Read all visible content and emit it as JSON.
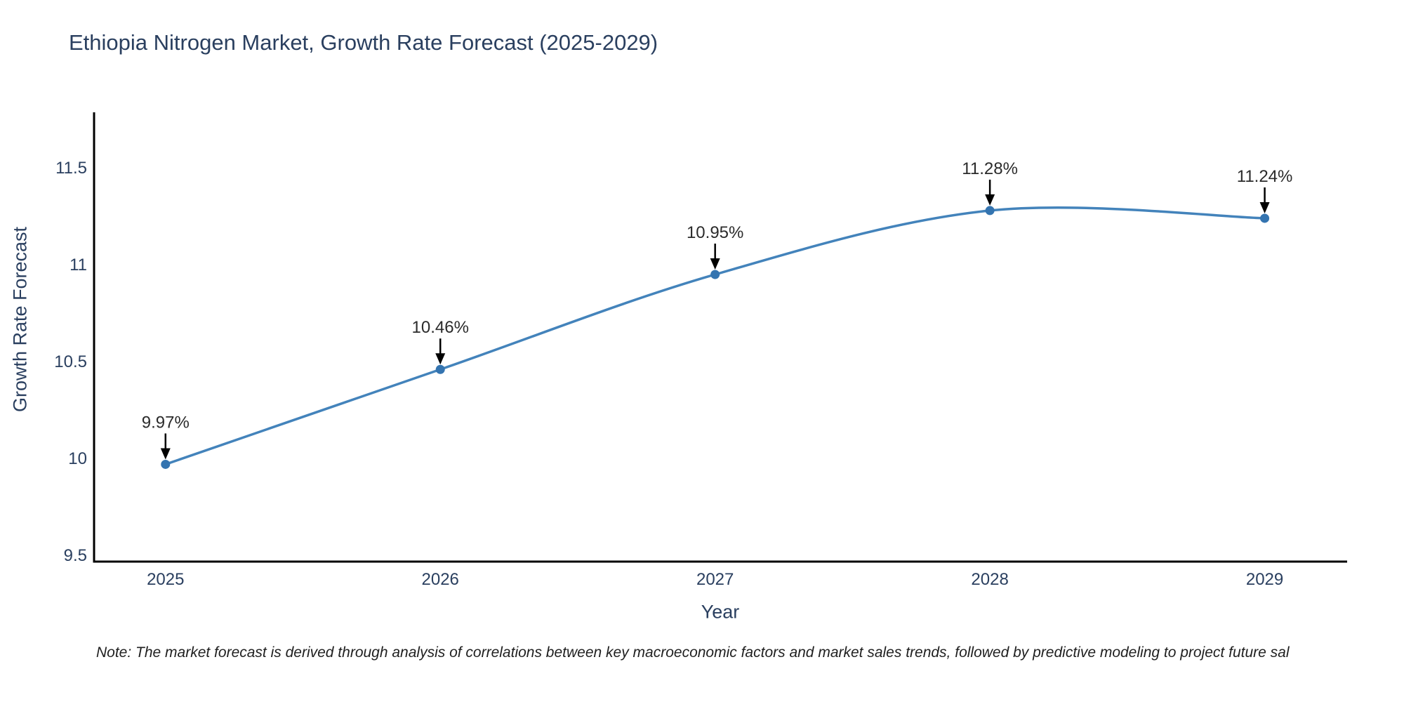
{
  "page": {
    "background": "#ffffff"
  },
  "chart_data": {
    "type": "line",
    "title": "Ethiopia Nitrogen Market, Growth Rate Forecast (2025-2029)",
    "xlabel": "Year",
    "ylabel": "Growth Rate Forecast",
    "categories": [
      "2025",
      "2026",
      "2027",
      "2028",
      "2029"
    ],
    "x": [
      2025,
      2026,
      2027,
      2028,
      2029
    ],
    "series": [
      {
        "name": "Growth Rate Forecast",
        "values": [
          9.97,
          10.46,
          10.95,
          11.28,
          11.24
        ]
      }
    ],
    "data_labels": [
      "9.97%",
      "10.46%",
      "10.95%",
      "11.28%",
      "11.24%"
    ],
    "y_ticks": [
      9.5,
      10,
      10.5,
      11,
      11.5
    ],
    "y_tick_labels": [
      "9.5",
      "10",
      "10.5",
      "11",
      "11.5"
    ],
    "ylim": [
      9.468,
      11.787
    ],
    "xlim": [
      2024.74,
      2029.3
    ],
    "grid": false,
    "legend": "none",
    "line_shape": "spline",
    "annotations_have_arrows": true,
    "colors": {
      "line": "#4383bb",
      "marker": "#3474b0",
      "axis": "#000000",
      "tick_text": "#2a3f5f",
      "title_text": "#2a3f5f",
      "annotation_text": "#2b2b2b",
      "arrow": "#000000",
      "background": "#ffffff"
    }
  },
  "footnote": "Note: The market forecast is derived through analysis of correlations between key macroeconomic factors and market sales trends, followed by predictive modeling to project future sal"
}
